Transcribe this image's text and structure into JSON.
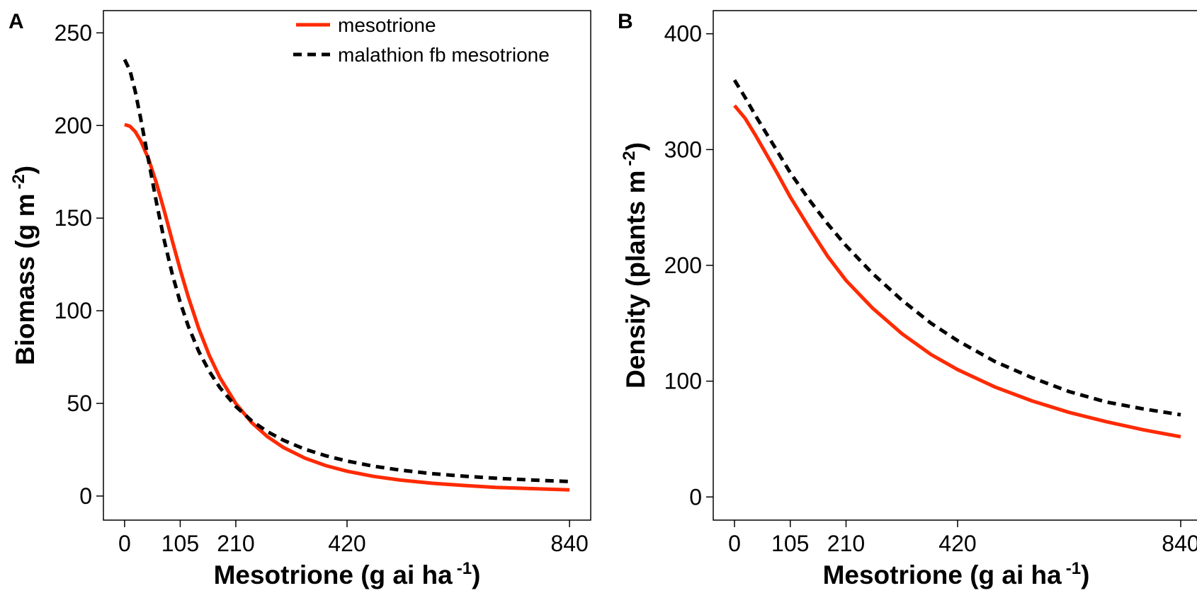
{
  "colors": {
    "mesotrione": "#ff2a00",
    "malathion_fb_mesotrione": "#000000"
  },
  "chart_data": [
    {
      "panel": "A",
      "type": "line",
      "xlabel": "Mesotrione (g ai ha",
      "xlabel_sup": "-1",
      "xlabel_end": ")",
      "ylabel": "Biomass (g m",
      "ylabel_sup": "-2",
      "ylabel_end": ")",
      "xticks": [
        0,
        105,
        210,
        420,
        840
      ],
      "yticks": [
        0,
        50,
        100,
        150,
        200,
        250
      ],
      "xlim": [
        -40,
        880
      ],
      "ylim": [
        -13,
        262
      ],
      "legend": {
        "position": "top-right"
      },
      "series": [
        {
          "name": "mesotrione",
          "color": "#ff2a00",
          "dash": "solid",
          "x": [
            0,
            10,
            20,
            30,
            45,
            60,
            75,
            90,
            105,
            120,
            140,
            160,
            180,
            210,
            240,
            270,
            300,
            340,
            380,
            420,
            470,
            520,
            580,
            640,
            700,
            770,
            840
          ],
          "y": [
            200.5,
            199.6,
            196.7,
            192.0,
            182.1,
            169.0,
            153.8,
            137.8,
            122.2,
            107.6,
            90.4,
            75.8,
            63.9,
            49.9,
            39.6,
            32.0,
            26.2,
            20.5,
            16.4,
            13.4,
            10.6,
            8.6,
            6.9,
            5.7,
            4.7,
            4.0,
            3.3
          ]
        },
        {
          "name": "malathion fb mesotrione",
          "color": "#000000",
          "dash": "dashed",
          "x": [
            0,
            10,
            20,
            30,
            45,
            60,
            75,
            90,
            105,
            120,
            140,
            160,
            180,
            210,
            240,
            270,
            300,
            340,
            380,
            420,
            470,
            520,
            580,
            640,
            700,
            770,
            840
          ],
          "y": [
            235.6,
            229.8,
            218.5,
            204.4,
            181.4,
            158.6,
            137.8,
            119.8,
            104.6,
            91.8,
            78.1,
            67.2,
            58.5,
            48.3,
            40.6,
            34.7,
            30.1,
            25.3,
            21.7,
            18.9,
            16.1,
            14.0,
            12.1,
            10.7,
            9.6,
            8.6,
            7.8
          ]
        }
      ]
    },
    {
      "panel": "B",
      "type": "line",
      "xlabel": "Mesotrione (g ai ha",
      "xlabel_sup": "-1",
      "xlabel_end": ")",
      "ylabel": "Density (plants m",
      "ylabel_sup": "-2",
      "ylabel_end": ")",
      "xticks": [
        0,
        105,
        210,
        420,
        840
      ],
      "yticks": [
        0,
        100,
        200,
        300,
        400
      ],
      "xlim": [
        -40,
        880
      ],
      "ylim": [
        -20,
        420
      ],
      "series": [
        {
          "name": "mesotrione",
          "color": "#ff2a00",
          "dash": "solid",
          "x": [
            0,
            20,
            40,
            60,
            80,
            105,
            140,
            175,
            210,
            260,
            315,
            370,
            420,
            490,
            560,
            630,
            700,
            770,
            840
          ],
          "y": [
            338,
            327,
            312,
            296,
            280,
            259,
            233,
            208,
            187,
            163,
            141,
            123,
            110,
            95,
            83,
            73,
            65,
            58,
            52
          ]
        },
        {
          "name": "malathion fb mesotrione",
          "color": "#000000",
          "dash": "dashed",
          "x": [
            0,
            20,
            40,
            60,
            80,
            105,
            140,
            175,
            210,
            260,
            315,
            370,
            420,
            490,
            560,
            630,
            700,
            770,
            840
          ],
          "y": [
            360,
            345,
            329,
            314,
            299,
            280,
            257,
            236,
            217,
            193,
            170,
            150,
            135,
            117,
            103,
            91,
            82,
            76,
            71
          ]
        }
      ]
    }
  ]
}
